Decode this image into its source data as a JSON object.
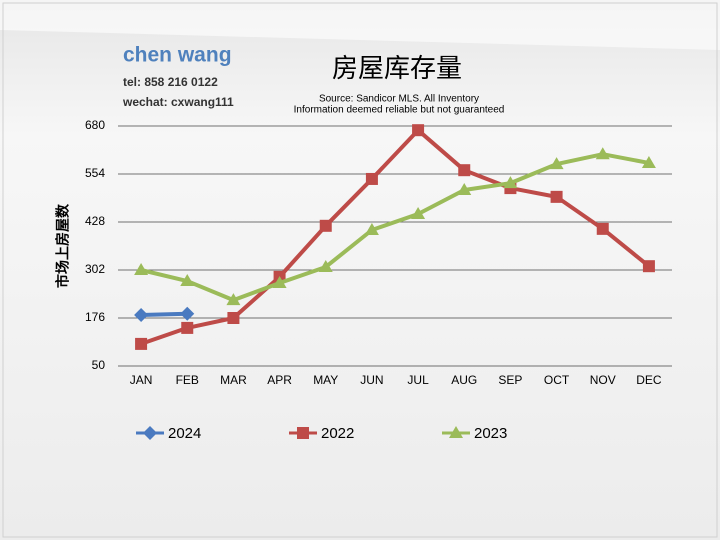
{
  "header": {
    "name": "chen wang",
    "tel": "tel: 858 216 0122",
    "wechat": "wechat: cxwang111"
  },
  "chart_data": {
    "type": "line",
    "title": "房屋库存量",
    "subtitle": [
      "Source: Sandicor MLS. All Inventory",
      "Information deemed reliable but not guaranteed"
    ],
    "y_label": "市场上房屋数",
    "categories": [
      "JAN",
      "FEB",
      "MAR",
      "APR",
      "MAY",
      "JUN",
      "JUL",
      "AUG",
      "SEP",
      "OCT",
      "NOV",
      "DEC"
    ],
    "series": [
      {
        "name": "2024",
        "color": "#4a7ac0",
        "marker": "diamond",
        "values": [
          184,
          187,
          null,
          null,
          null,
          null,
          null,
          null,
          null,
          null,
          null,
          null
        ]
      },
      {
        "name": "2022",
        "color": "#be4b48",
        "marker": "square",
        "values": [
          108,
          150,
          176,
          284,
          418,
          541,
          669,
          564,
          517,
          494,
          410,
          312
        ]
      },
      {
        "name": "2023",
        "color": "#9bbb59",
        "marker": "triangle",
        "values": [
          302,
          273,
          223,
          268,
          310,
          407,
          449,
          512,
          530,
          580,
          606,
          583
        ]
      }
    ],
    "ylim": [
      50,
      680
    ],
    "yticks": [
      50,
      176,
      302,
      428,
      554,
      680
    ],
    "grid": true,
    "legend": "bottom"
  }
}
